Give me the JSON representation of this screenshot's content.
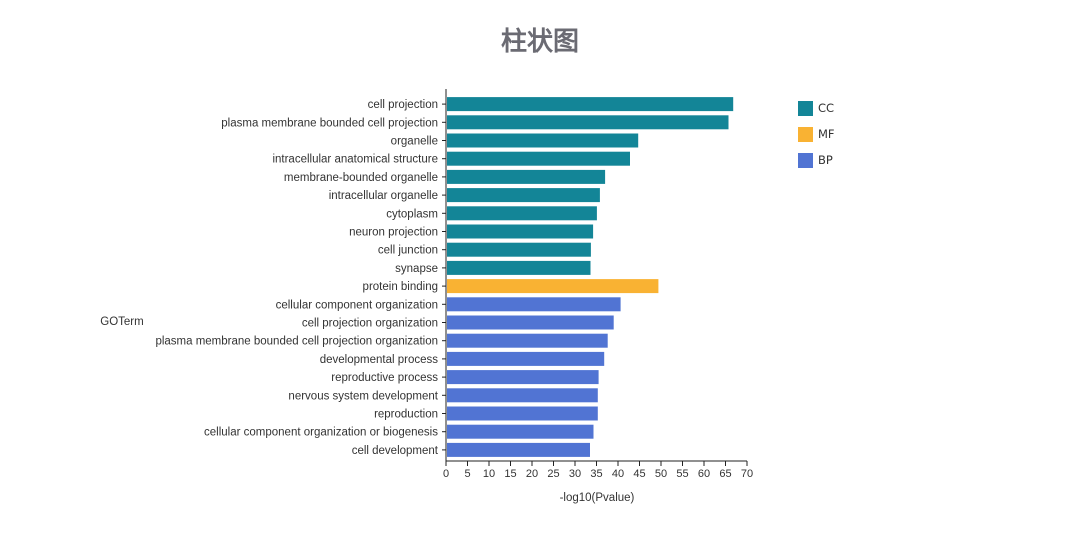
{
  "chart_data": {
    "type": "bar",
    "orientation": "horizontal",
    "title": "柱状图",
    "xlabel": "-log10(Pvalue)",
    "ylabel": "GOTerm",
    "xlim": [
      0,
      70
    ],
    "xticks": [
      0,
      5,
      10,
      15,
      20,
      25,
      30,
      35,
      40,
      45,
      50,
      55,
      60,
      65,
      70
    ],
    "grid": false,
    "legend_position": "top-right",
    "legend": [
      {
        "key": "CC",
        "label": "CC",
        "color": "#138597"
      },
      {
        "key": "MF",
        "label": "MF",
        "color": "#f9b233"
      },
      {
        "key": "BP",
        "label": "BP",
        "color": "#5174d3"
      }
    ],
    "categories": [
      "cell projection",
      "plasma membrane bounded cell projection",
      "organelle",
      "intracellular anatomical structure",
      "membrane-bounded organelle",
      "intracellular organelle",
      "cytoplasm",
      "neuron projection",
      "cell junction",
      "synapse",
      "protein binding",
      "cellular component organization",
      "cell projection organization",
      "plasma membrane bounded cell projection organization",
      "developmental process",
      "reproductive process",
      "nervous system development",
      "reproduction",
      "cellular component organization or biogenesis",
      "cell development"
    ],
    "values": [
      66.8,
      65.7,
      44.7,
      42.8,
      37.0,
      35.8,
      35.1,
      34.2,
      33.7,
      33.6,
      49.4,
      40.6,
      39.0,
      37.6,
      36.8,
      35.5,
      35.3,
      35.3,
      34.3,
      33.5
    ],
    "groups": [
      "CC",
      "CC",
      "CC",
      "CC",
      "CC",
      "CC",
      "CC",
      "CC",
      "CC",
      "CC",
      "MF",
      "BP",
      "BP",
      "BP",
      "BP",
      "BP",
      "BP",
      "BP",
      "BP",
      "BP"
    ]
  }
}
